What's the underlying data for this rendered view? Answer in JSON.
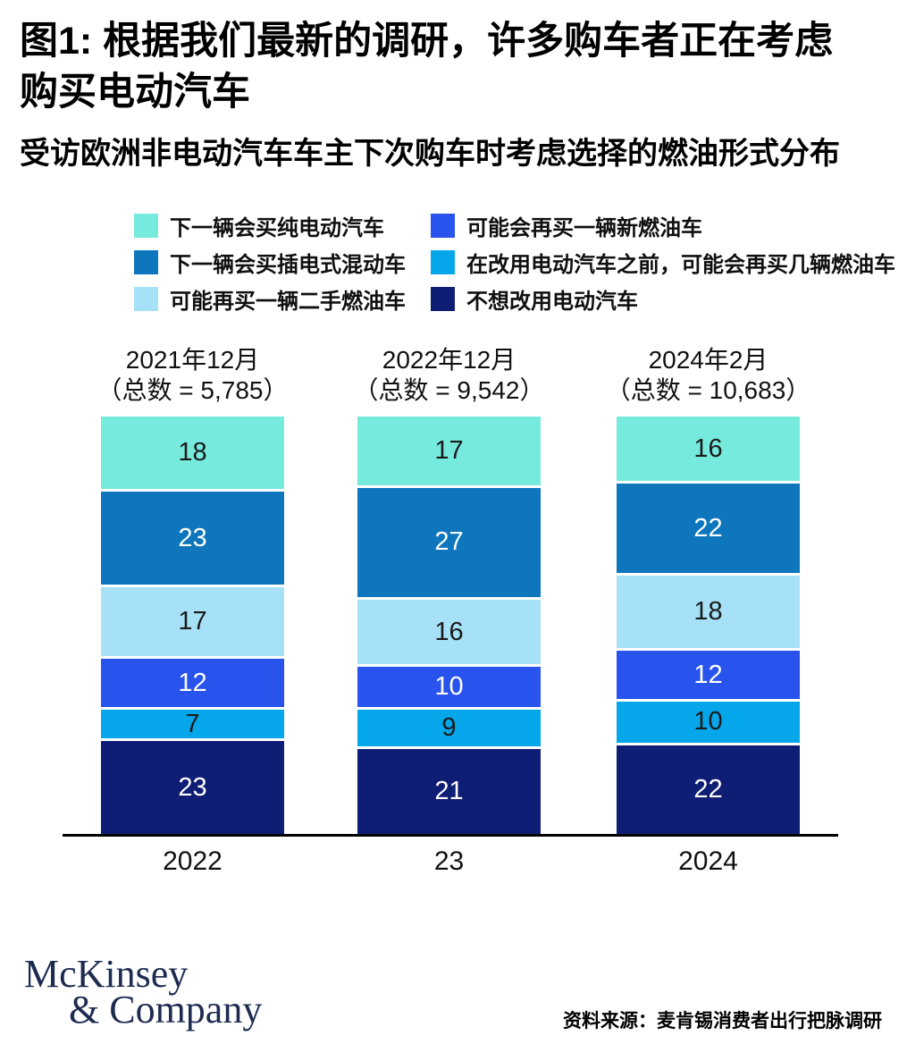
{
  "title": {
    "line1": "图1: 根据我们最新的调研，许多购车者正在考虑",
    "line2": "购买电动汽车"
  },
  "subtitle": "受访欧洲非电动汽车车主下次购车时考虑选择的燃油形式分布",
  "chart_data": {
    "type": "bar",
    "subtype": "stacked-100",
    "legend_position": "top",
    "grid": false,
    "series": [
      {
        "label": "下一辆会买纯电动汽车",
        "color": "#76EADD",
        "value_text_color": "#1A1A1A"
      },
      {
        "label": "下一辆会买插电式混动车",
        "color": "#0D76BD",
        "value_text_color": "#FFFFFF"
      },
      {
        "label": "可能再买一辆二手燃油车",
        "color": "#A6E1F8",
        "value_text_color": "#1A1A1A"
      },
      {
        "label": "可能会再买一辆新燃油车",
        "color": "#2853EC",
        "value_text_color": "#FFFFFF"
      },
      {
        "label": "在改用电动汽车之前，可能会再买几辆燃油车",
        "color": "#06A6EA",
        "value_text_color": "#1A1A1A"
      },
      {
        "label": "不想改用电动汽车",
        "color": "#0F1E75",
        "value_text_color": "#FFFFFF"
      }
    ],
    "columns": [
      {
        "header_line1": "2021年12月",
        "header_line2": "（总数 = 5,785）",
        "axis_label": "2022",
        "values": [
          18,
          23,
          17,
          12,
          7,
          23
        ]
      },
      {
        "header_line1": "2022年12月",
        "header_line2": "（总数 = 9,542）",
        "axis_label": "23",
        "values": [
          17,
          27,
          16,
          10,
          9,
          21
        ]
      },
      {
        "header_line1": "2024年2月",
        "header_line2": "（总数 = 10,683）",
        "axis_label": "2024",
        "values": [
          16,
          22,
          18,
          12,
          10,
          22
        ]
      }
    ],
    "axis_color": "#000000"
  },
  "footer": {
    "logo_line1": "McKinsey",
    "logo_line2": "& Company",
    "logo_color": "#1D2B50",
    "source": "资料来源：麦肯锡消费者出行把脉调研"
  }
}
